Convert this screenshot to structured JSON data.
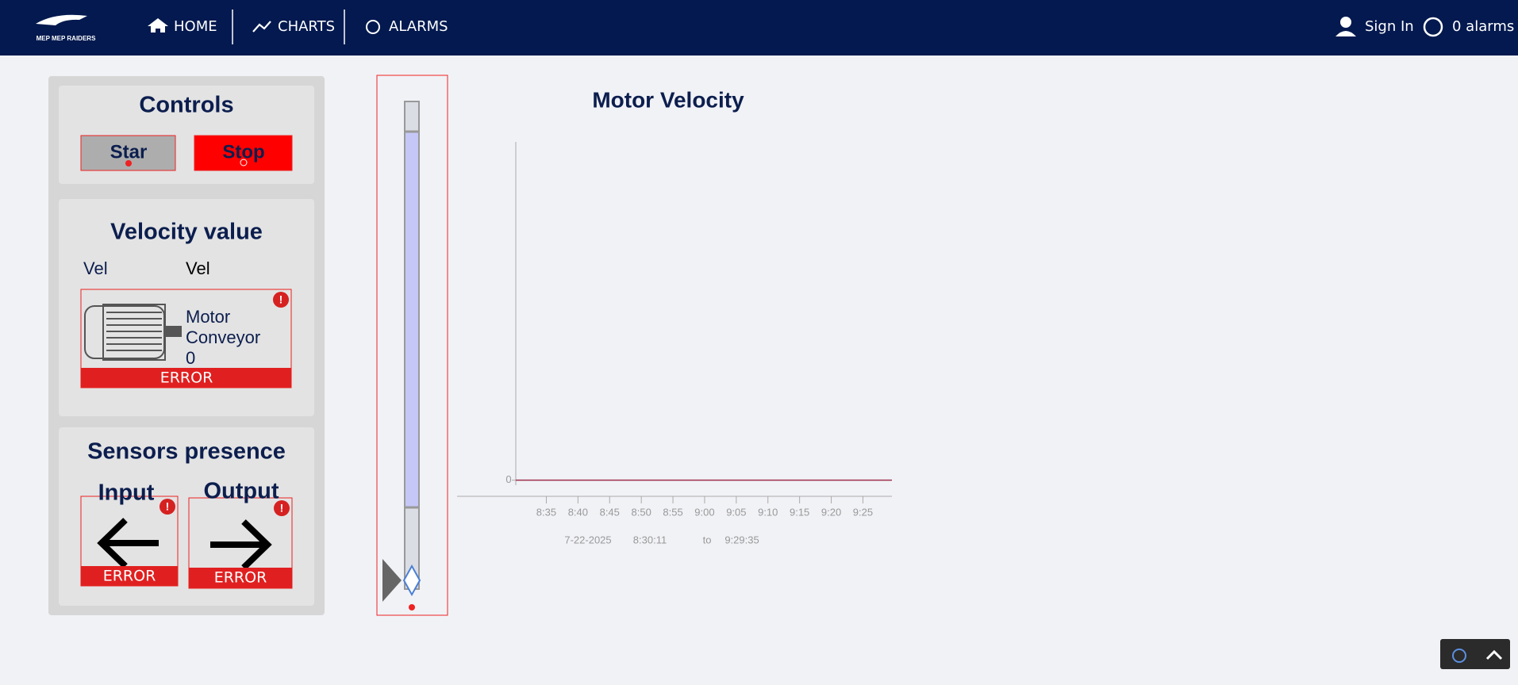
{
  "nav": {
    "logo": "MEP MEP RAIDERS",
    "links": [
      "HOME",
      "CHARTS",
      "ALARMS"
    ],
    "sign_in": "Sign In",
    "alarms": "0 alarms"
  },
  "controls": {
    "title": "Controls",
    "buttons": [
      "Star",
      "Stop"
    ]
  },
  "velocity": {
    "title": "Velocity value",
    "labels": [
      "Vel",
      "Vel"
    ],
    "motor": {
      "lines": [
        "Motor",
        "Conveyor",
        "0"
      ],
      "status": "ERROR"
    }
  },
  "sensors": {
    "title": "Sensors presence",
    "items": [
      {
        "label": "Input",
        "status": "ERROR"
      },
      {
        "label": "Output",
        "status": "ERROR"
      }
    ]
  },
  "chart_data": {
    "type": "line",
    "title": "Motor Velocity",
    "x": [
      30.18,
      89.58
    ],
    "series": [
      {
        "color": "#9b2f4a",
        "values": [
          0,
          0
        ]
      }
    ],
    "xlim": [
      30.18,
      89.58
    ],
    "xticks": [
      {
        "value": 35,
        "label": "8:35"
      },
      {
        "value": 40,
        "label": "8:40"
      },
      {
        "value": 45,
        "label": "8:45"
      },
      {
        "value": 50,
        "label": "8:50"
      },
      {
        "value": 55,
        "label": "8:55"
      },
      {
        "value": 60,
        "label": "9:00"
      },
      {
        "value": 65,
        "label": "9:05"
      },
      {
        "value": 70,
        "label": "9:10"
      },
      {
        "value": 75,
        "label": "9:15"
      },
      {
        "value": 80,
        "label": "9:20"
      },
      {
        "value": 85,
        "label": "9:25"
      }
    ],
    "ylim": [
      -0.5,
      10.5
    ],
    "yticks": [
      0
    ],
    "range": [
      "7-22-2025",
      "8:30:11",
      "to",
      "9:29:35"
    ]
  }
}
